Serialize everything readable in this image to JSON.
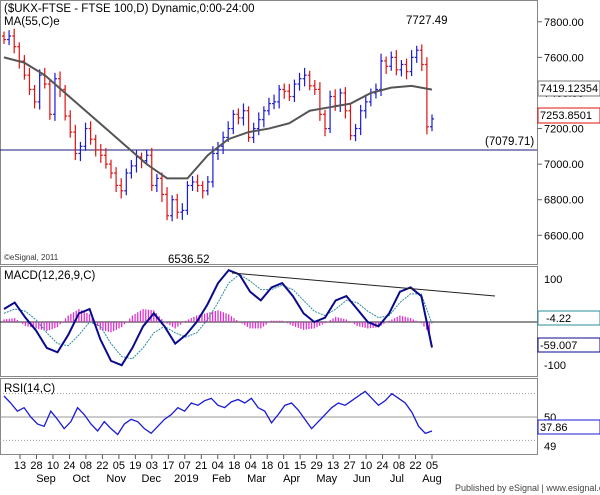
{
  "header": {
    "symbol_line": "($UKX-FTSE - FTSE 100,D) Dynamic,0:00-24:00",
    "ma_label": "MA(55,C)e",
    "copyright": "©eSignal, 2011",
    "footer": "Published by eSignal | www.esignal.com"
  },
  "colors": {
    "price_up": "#1a1ad6",
    "price_down": "#e01010",
    "ma": "#555555",
    "macd_line": "#0a0a8c",
    "macd_signal": "#2a8c9c",
    "histogram": "#e030d0",
    "rsi": "#1a1ad6",
    "support": "#1a1a7a"
  },
  "x_axis": {
    "day_labels": [
      "13",
      "28",
      "10",
      "24",
      "08",
      "22",
      "05",
      "19",
      "03",
      "17",
      "07",
      "21",
      "04",
      "18",
      "04",
      "18",
      "01",
      "15",
      "29",
      "13",
      "27",
      "10",
      "24",
      "08",
      "22",
      "05"
    ],
    "month_labels": [
      "Sep",
      "Oct",
      "Nov",
      "Dec",
      "2019",
      "Feb",
      "Mar",
      "Apr",
      "May",
      "Jun",
      "Jul",
      "Aug"
    ]
  },
  "chart_data": [
    {
      "type": "candlestick",
      "panel": "price",
      "title": "($UKX-FTSE - FTSE 100,D) Dynamic,0:00-24:00",
      "ylim": [
        6450,
        7900
      ],
      "y_ticks": [
        "7800.00",
        "7600.00",
        "7400.00",
        "7200.00",
        "7000.00",
        "6800.00",
        "6600.00"
      ],
      "y_tick_values": [
        7800,
        7600,
        7400,
        7200,
        7000,
        6800,
        6600
      ],
      "annotations": {
        "high": "7727.49",
        "low": "6536.52",
        "support_level_label": "(7079.71)",
        "support_level": 7079.71,
        "ma_value_box": "7419.12354",
        "last_price_box": "7253.8501"
      },
      "series": [
        {
          "name": "MA(55,C)e",
          "type": "line",
          "values": [
            7600,
            7570,
            7500,
            7400,
            7300,
            7200,
            7100,
            7000,
            6920,
            6920,
            7050,
            7140,
            7180,
            7200,
            7230,
            7300,
            7320,
            7340,
            7400,
            7430,
            7440,
            7419
          ]
        }
      ],
      "closes": [
        7700,
        7720,
        7660,
        7580,
        7500,
        7420,
        7350,
        7500,
        7450,
        7280,
        7480,
        7420,
        7270,
        7180,
        7060,
        7100,
        7200,
        7140,
        7080,
        7050,
        7000,
        6950,
        6880,
        6850,
        6950,
        6990,
        7040,
        7020,
        7050,
        6880,
        6920,
        6830,
        6710,
        6800,
        6730,
        6740,
        6880,
        6900,
        6880,
        6850,
        6900,
        7060,
        7100,
        7150,
        7200,
        7280,
        7260,
        7300,
        7150,
        7200,
        7250,
        7300,
        7340,
        7350,
        7420,
        7410,
        7380,
        7450,
        7480,
        7500,
        7440,
        7420,
        7280,
        7200,
        7380,
        7330,
        7400,
        7300,
        7160,
        7200,
        7300,
        7350,
        7400,
        7420,
        7580,
        7550,
        7600,
        7530,
        7560,
        7520,
        7600,
        7640,
        7560,
        7210,
        7254
      ]
    },
    {
      "type": "line",
      "panel": "macd",
      "title": "MACD(12,26,9,C)",
      "ylim": [
        -125,
        125
      ],
      "y_ticks": [
        "100",
        "-100"
      ],
      "y_tick_values": [
        100,
        -100
      ],
      "annotations": {
        "signal_box": "-4.22",
        "macd_box": "-59.007"
      },
      "series": [
        {
          "name": "MACD",
          "values": [
            30,
            45,
            10,
            -20,
            -60,
            -70,
            -30,
            20,
            30,
            -40,
            -90,
            -100,
            -60,
            -10,
            20,
            -10,
            -50,
            -30,
            0,
            40,
            90,
            120,
            110,
            70,
            50,
            80,
            90,
            60,
            20,
            0,
            10,
            50,
            60,
            30,
            0,
            -10,
            20,
            70,
            80,
            60,
            -59
          ]
        },
        {
          "name": "Signal",
          "values": [
            20,
            30,
            25,
            5,
            -25,
            -50,
            -55,
            -30,
            0,
            -10,
            -50,
            -80,
            -85,
            -60,
            -25,
            -10,
            -25,
            -35,
            -25,
            5,
            45,
            90,
            110,
            95,
            75,
            75,
            85,
            75,
            50,
            25,
            15,
            30,
            50,
            45,
            25,
            10,
            15,
            45,
            65,
            65,
            -4
          ]
        },
        {
          "name": "Histogram",
          "values": [
            10,
            15,
            -15,
            -25,
            -35,
            -20,
            25,
            50,
            30,
            -30,
            -40,
            -20,
            25,
            50,
            45,
            0,
            -25,
            5,
            25,
            35,
            45,
            30,
            0,
            -25,
            -25,
            5,
            5,
            -15,
            -30,
            -25,
            -5,
            20,
            10,
            -15,
            -25,
            -20,
            5,
            25,
            15,
            -5,
            -55
          ]
        }
      ],
      "trendline": {
        "from": [
          232,
          118
        ],
        "to": [
          495,
          88
        ]
      }
    },
    {
      "type": "line",
      "panel": "rsi",
      "title": "RSI(14,C)",
      "ylim": [
        20,
        80
      ],
      "y_ticks": [
        "50",
        "49"
      ],
      "y_tick_values": [
        50,
        49
      ],
      "annotations": {
        "rsi_box": "37.86"
      },
      "series": [
        {
          "name": "RSI(14,C)",
          "values": [
            68,
            62,
            55,
            58,
            50,
            44,
            42,
            55,
            48,
            40,
            46,
            58,
            52,
            44,
            38,
            46,
            40,
            35,
            44,
            48,
            46,
            40,
            36,
            42,
            48,
            52,
            58,
            55,
            62,
            60,
            64,
            66,
            60,
            58,
            63,
            65,
            62,
            66,
            58,
            55,
            45,
            52,
            60,
            62,
            56,
            48,
            40,
            46,
            52,
            58,
            62,
            60,
            64,
            68,
            72,
            66,
            60,
            64,
            70,
            66,
            62,
            54,
            42,
            36,
            38
          ]
        }
      ]
    }
  ]
}
